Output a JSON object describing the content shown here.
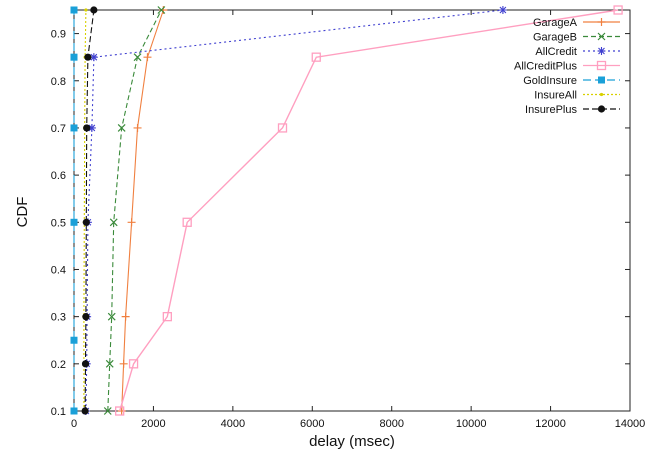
{
  "chart_data": {
    "type": "line",
    "xlabel": "delay (msec)",
    "ylabel": "CDF",
    "xlim": [
      0,
      14000
    ],
    "ylim": [
      0.1,
      0.95
    ],
    "x_ticks": [
      "0",
      "2000",
      "4000",
      "6000",
      "8000",
      "10000",
      "12000",
      "14000"
    ],
    "y_ticks": [
      "0.1",
      "0.2",
      "0.3",
      "0.4",
      "0.5",
      "0.6",
      "0.7",
      "0.8",
      "0.9"
    ],
    "x_tick_values": [
      0,
      2000,
      4000,
      6000,
      8000,
      10000,
      12000,
      14000
    ],
    "y_tick_values": [
      0.1,
      0.2,
      0.3,
      0.4,
      0.5,
      0.6,
      0.7,
      0.8,
      0.9
    ],
    "grid": false,
    "legend_position": "top-right",
    "series": [
      {
        "name": "GarageA",
        "color": "#f08040",
        "marker": "plus",
        "dash": "",
        "points": [
          [
            1200,
            0.1
          ],
          [
            1250,
            0.2
          ],
          [
            1300,
            0.3
          ],
          [
            1450,
            0.5
          ],
          [
            1600,
            0.7
          ],
          [
            1850,
            0.85
          ],
          [
            2250,
            0.95
          ]
        ]
      },
      {
        "name": "GarageB",
        "color": "#3a8a3a",
        "marker": "x",
        "dash": "5,3",
        "points": [
          [
            850,
            0.1
          ],
          [
            900,
            0.2
          ],
          [
            950,
            0.3
          ],
          [
            1000,
            0.5
          ],
          [
            1200,
            0.7
          ],
          [
            1600,
            0.85
          ],
          [
            2200,
            0.95
          ]
        ]
      },
      {
        "name": "AllCredit",
        "color": "#4040d0",
        "marker": "star",
        "dash": "2,3",
        "points": [
          [
            300,
            0.1
          ],
          [
            320,
            0.2
          ],
          [
            330,
            0.3
          ],
          [
            350,
            0.5
          ],
          [
            450,
            0.7
          ],
          [
            500,
            0.85
          ],
          [
            10800,
            0.95
          ]
        ]
      },
      {
        "name": "AllCreditPlus",
        "color": "#ff9fc0",
        "marker": "square-open",
        "dash": "",
        "points": [
          [
            1150,
            0.1
          ],
          [
            1500,
            0.2
          ],
          [
            2350,
            0.3
          ],
          [
            2850,
            0.5
          ],
          [
            5250,
            0.7
          ],
          [
            6100,
            0.85
          ],
          [
            13700,
            0.95
          ]
        ]
      },
      {
        "name": "GoldInsure",
        "color": "#1aa0d8",
        "marker": "square-filled",
        "dash": "8,4",
        "points": [
          [
            0,
            0.1
          ],
          [
            0,
            0.25
          ],
          [
            0,
            0.5
          ],
          [
            0,
            0.7
          ],
          [
            0,
            0.85
          ],
          [
            0,
            0.95
          ]
        ]
      },
      {
        "name": "InsureAll",
        "color": "#d8d000",
        "marker": "dot-small",
        "dash": "2,2",
        "points": [
          [
            250,
            0.1
          ],
          [
            250,
            0.2
          ],
          [
            250,
            0.3
          ],
          [
            260,
            0.5
          ],
          [
            270,
            0.7
          ],
          [
            280,
            0.85
          ],
          [
            300,
            0.95
          ]
        ]
      },
      {
        "name": "InsurePlus",
        "color": "#111111",
        "marker": "circle-filled",
        "dash": "6,3",
        "points": [
          [
            280,
            0.1
          ],
          [
            290,
            0.2
          ],
          [
            300,
            0.3
          ],
          [
            310,
            0.5
          ],
          [
            320,
            0.7
          ],
          [
            350,
            0.85
          ],
          [
            500,
            0.95
          ]
        ]
      }
    ]
  }
}
